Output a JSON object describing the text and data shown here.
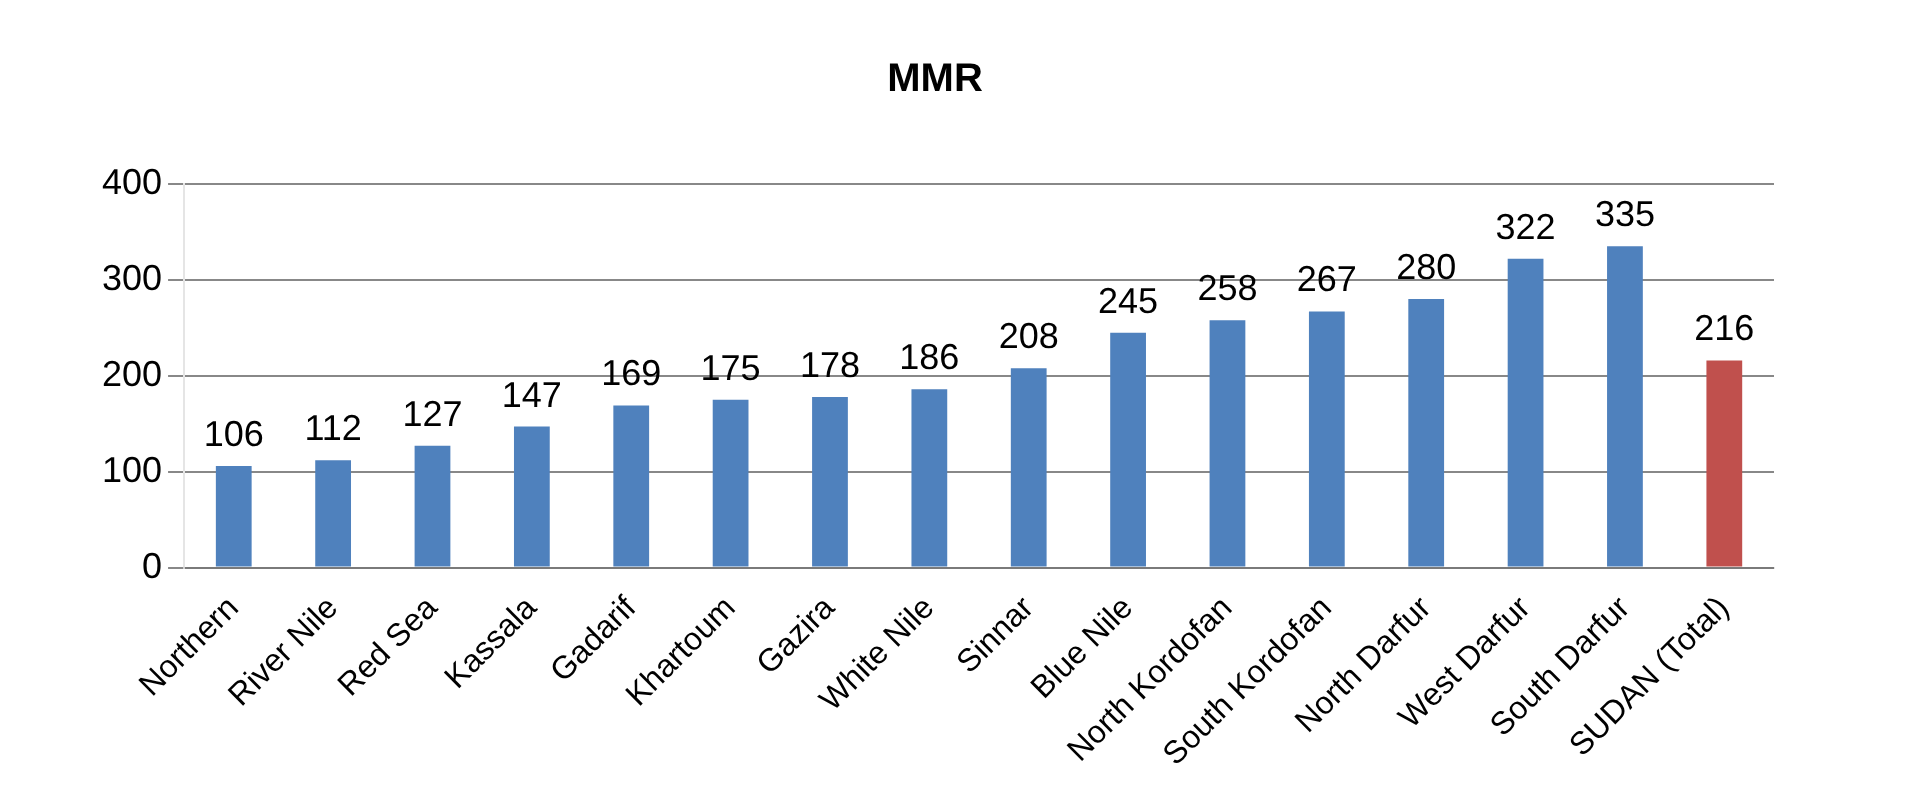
{
  "chart_data": {
    "type": "bar",
    "title": "MMR",
    "categories": [
      "Northern",
      "River Nile",
      "Red Sea",
      "Kassala",
      "Gadarif",
      "Khartoum",
      "Gazira",
      "White Nile",
      "Sinnar",
      "Blue Nile",
      "North Kordofan",
      "South Kordofan",
      "North Darfur",
      "West Darfur",
      "South Darfur",
      "SUDAN (Total)"
    ],
    "values": [
      106,
      112,
      127,
      147,
      169,
      175,
      178,
      186,
      208,
      245,
      258,
      267,
      280,
      322,
      335,
      216
    ],
    "colors": [
      "#4f81bd",
      "#4f81bd",
      "#4f81bd",
      "#4f81bd",
      "#4f81bd",
      "#4f81bd",
      "#4f81bd",
      "#4f81bd",
      "#4f81bd",
      "#4f81bd",
      "#4f81bd",
      "#4f81bd",
      "#4f81bd",
      "#4f81bd",
      "#4f81bd",
      "#c0504d"
    ],
    "ylim": [
      0,
      400
    ],
    "yticks": [
      0,
      100,
      200,
      300,
      400
    ],
    "grid": "y",
    "data_labels": true
  }
}
